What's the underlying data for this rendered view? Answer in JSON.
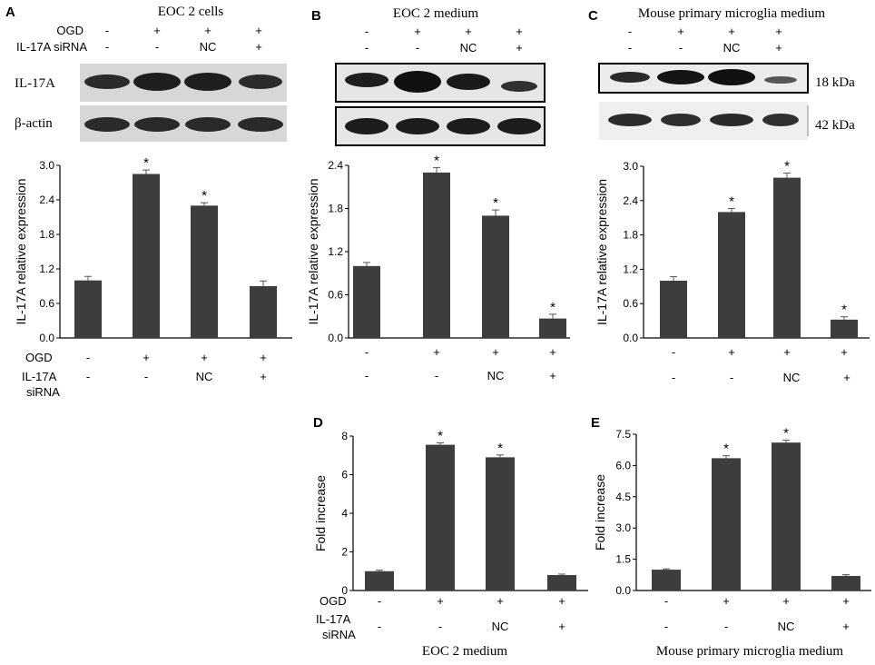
{
  "panels": {
    "A": {
      "letter": "A",
      "title": "EOC 2 cells",
      "blot_rows": [
        {
          "label": "OGD",
          "values": [
            "-",
            "+",
            "+",
            "+"
          ]
        },
        {
          "label": "IL-17A siRNA",
          "values": [
            "-",
            "-",
            "NC",
            "+"
          ]
        }
      ],
      "blot_labels": [
        "IL-17A",
        "β-actin"
      ],
      "x_rows": [
        {
          "label": "OGD",
          "values": [
            "-",
            "+",
            "+",
            "+"
          ]
        },
        {
          "label": "IL-17A",
          "label2": "siRNA",
          "values": [
            "-",
            "-",
            "NC",
            "+"
          ]
        }
      ]
    },
    "B": {
      "letter": "B",
      "title": "EOC 2 medium",
      "blot_rows": [
        {
          "values": [
            "-",
            "+",
            "+",
            "+"
          ]
        },
        {
          "values": [
            "-",
            "-",
            "NC",
            "+"
          ]
        }
      ],
      "x_rows": [
        {
          "values": [
            "-",
            "+",
            "+",
            "+"
          ]
        },
        {
          "values": [
            "-",
            "-",
            "NC",
            "+"
          ]
        }
      ]
    },
    "C": {
      "letter": "C",
      "title": "Mouse primary microglia medium",
      "blot_rows": [
        {
          "values": [
            "-",
            "+",
            "+",
            "+"
          ]
        },
        {
          "values": [
            "-",
            "-",
            "NC",
            "+"
          ]
        }
      ],
      "kda": [
        "18 kDa",
        "42 kDa"
      ],
      "x_rows": [
        {
          "values": [
            "-",
            "+",
            "+",
            "+"
          ]
        },
        {
          "values": [
            "-",
            "-",
            "NC",
            "+"
          ]
        }
      ]
    },
    "D": {
      "letter": "D",
      "x_rows": [
        {
          "label": "OGD",
          "values": [
            "-",
            "+",
            "+",
            "+"
          ]
        },
        {
          "label": "IL-17A",
          "label2": "siRNA",
          "values": [
            "-",
            "-",
            "NC",
            "+"
          ]
        }
      ],
      "caption": "EOC 2 medium"
    },
    "E": {
      "letter": "E",
      "x_rows": [
        {
          "values": [
            "-",
            "+",
            "+",
            "+"
          ]
        },
        {
          "values": [
            "-",
            "-",
            "NC",
            "+"
          ]
        }
      ],
      "caption": "Mouse primary microglia medium"
    }
  },
  "chart_data": [
    {
      "panel": "A",
      "type": "bar",
      "ylabel": "IL-17A relative expression",
      "ylim": [
        0,
        3.0
      ],
      "yticks": [
        "0.0",
        "0.6",
        "1.2",
        "1.8",
        "2.4",
        "3.0"
      ],
      "values": [
        1.0,
        2.85,
        2.3,
        0.9
      ],
      "errors": [
        0.07,
        0.07,
        0.05,
        0.09
      ],
      "significance": [
        "",
        "*",
        "*",
        ""
      ]
    },
    {
      "panel": "B",
      "type": "bar",
      "ylabel": "IL-17A relative expression",
      "ylim": [
        0,
        2.4
      ],
      "yticks": [
        "0.0",
        "0.6",
        "1.2",
        "1.8",
        "2.4"
      ],
      "values": [
        1.0,
        2.3,
        1.7,
        0.27
      ],
      "errors": [
        0.05,
        0.07,
        0.08,
        0.06
      ],
      "significance": [
        "",
        "*",
        "*",
        "*"
      ]
    },
    {
      "panel": "C",
      "type": "bar",
      "ylabel": "IL-17A relative expression",
      "ylim": [
        0,
        3.0
      ],
      "yticks": [
        "0.0",
        "0.6",
        "1.2",
        "1.8",
        "2.4",
        "3.0"
      ],
      "values": [
        1.0,
        2.2,
        2.8,
        0.32
      ],
      "errors": [
        0.07,
        0.06,
        0.08,
        0.05
      ],
      "significance": [
        "",
        "*",
        "*",
        "*"
      ]
    },
    {
      "panel": "D",
      "type": "bar",
      "ylabel": "Fold increase",
      "ylim": [
        0,
        8
      ],
      "yticks": [
        "0",
        "2",
        "4",
        "6",
        "8"
      ],
      "values": [
        1.0,
        7.55,
        6.9,
        0.8
      ],
      "errors": [
        0.05,
        0.1,
        0.12,
        0.05
      ],
      "significance": [
        "",
        "*",
        "*",
        ""
      ]
    },
    {
      "panel": "E",
      "type": "bar",
      "ylabel": "Fold increase",
      "ylim": [
        0,
        7.5
      ],
      "yticks": [
        "0.0",
        "1.5",
        "3.0",
        "4.5",
        "6.0",
        "7.5"
      ],
      "values": [
        1.0,
        6.35,
        7.1,
        0.7
      ],
      "errors": [
        0.04,
        0.12,
        0.12,
        0.06
      ],
      "significance": [
        "",
        "*",
        "*",
        ""
      ]
    }
  ]
}
